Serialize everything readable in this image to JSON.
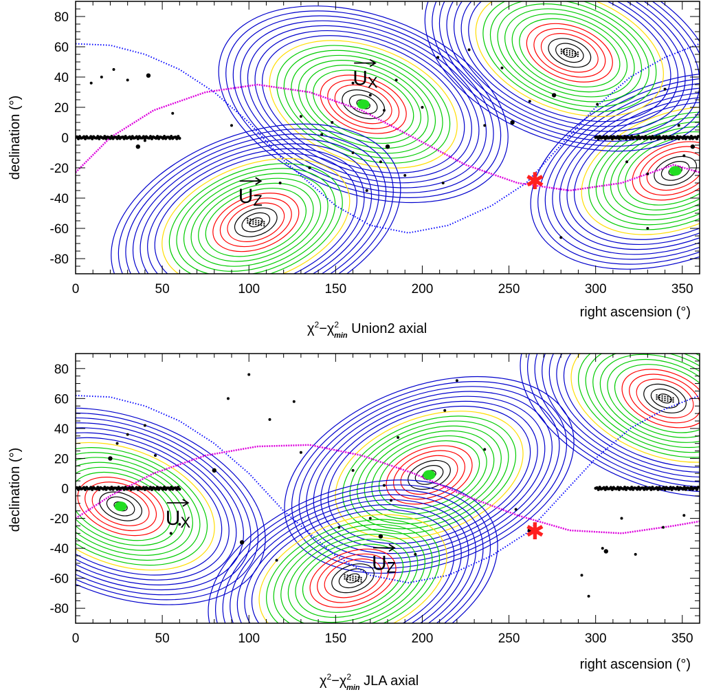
{
  "chart_data": [
    {
      "type": "contour",
      "title": "χ²−χ²min Union2 axial",
      "title_parts": {
        "chi": "χ",
        "sq": "2",
        "minus": "−",
        "chi2": "χ",
        "sq2": "2",
        "sub": "min",
        "rest": " Union2 axial"
      },
      "xlabel": "right ascension (°)",
      "ylabel": "declination (°)",
      "xlim": [
        0,
        360
      ],
      "ylim": [
        -90,
        90
      ],
      "xticks": [
        "0",
        "50",
        "100",
        "150",
        "200",
        "250",
        "300",
        "350"
      ],
      "xtick_values": [
        0,
        50,
        100,
        150,
        200,
        250,
        300,
        350
      ],
      "yticks": [
        "80",
        "60",
        "40",
        "20",
        "0",
        "-20",
        "-40",
        "-60",
        "-80"
      ],
      "ytick_values": [
        80,
        60,
        40,
        20,
        0,
        -20,
        -40,
        -60,
        -80
      ],
      "contour_colors": [
        "#0000cc",
        "#ffdd00",
        "#00cc00",
        "#ff0000",
        "#000000"
      ],
      "minima": [
        {
          "ra": 166,
          "dec": 22,
          "label": "green patch"
        },
        {
          "ra": 346,
          "dec": -22,
          "label": "green patch"
        },
        {
          "ra": 285,
          "dec": 56,
          "label": "black dotted patch"
        },
        {
          "ra": 104,
          "dec": -56,
          "label": "black dotted patch"
        }
      ],
      "vectors": [
        {
          "label": "U",
          "sub": "X",
          "ra": 167,
          "dec": 42
        },
        {
          "label": "U",
          "sub": "Z",
          "ra": 101,
          "dec": -36
        }
      ],
      "marker": {
        "ra": 265,
        "dec": -29,
        "symbol": "✱",
        "color": "#ff2020"
      },
      "galactic_plane": {
        "color": "#0000ff",
        "points": [
          [
            0,
            62
          ],
          [
            20,
            61
          ],
          [
            40,
            55
          ],
          [
            60,
            45
          ],
          [
            80,
            30
          ],
          [
            100,
            10
          ],
          [
            120,
            -15
          ],
          [
            150,
            -45
          ],
          [
            170,
            -58
          ],
          [
            192,
            -63
          ],
          [
            215,
            -58
          ],
          [
            240,
            -45
          ],
          [
            260,
            -30
          ],
          [
            280,
            -5
          ],
          [
            300,
            20
          ],
          [
            320,
            40
          ],
          [
            340,
            53
          ],
          [
            360,
            62
          ]
        ]
      },
      "ecliptic": {
        "color": "#dd00dd",
        "points": [
          [
            0,
            -23
          ],
          [
            20,
            0
          ],
          [
            45,
            18
          ],
          [
            75,
            30
          ],
          [
            105,
            35
          ],
          [
            135,
            30
          ],
          [
            165,
            18
          ],
          [
            195,
            0
          ],
          [
            225,
            -18
          ],
          [
            255,
            -30
          ],
          [
            285,
            -35
          ],
          [
            315,
            -30
          ],
          [
            345,
            -18
          ],
          [
            360,
            -23
          ]
        ]
      },
      "sn_ridge": {
        "dec": 0,
        "ra_ranges": [
          [
            0,
            60
          ],
          [
            300,
            360
          ]
        ]
      },
      "scatter": [
        [
          36,
          -6
        ],
        [
          40,
          -2
        ],
        [
          56,
          16
        ],
        [
          9,
          36
        ],
        [
          15,
          40
        ],
        [
          22,
          45
        ],
        [
          30,
          38
        ],
        [
          42,
          41
        ],
        [
          90,
          8
        ],
        [
          130,
          14
        ],
        [
          148,
          10
        ],
        [
          176,
          -16
        ],
        [
          190,
          -25
        ],
        [
          168,
          -35
        ],
        [
          180,
          -6
        ],
        [
          185,
          38
        ],
        [
          200,
          20
        ],
        [
          209,
          53
        ],
        [
          212,
          -30
        ],
        [
          246,
          46
        ],
        [
          262,
          24
        ],
        [
          276,
          28
        ],
        [
          301,
          22
        ],
        [
          318,
          -16
        ],
        [
          330,
          -24
        ],
        [
          340,
          32
        ],
        [
          348,
          8
        ],
        [
          351,
          -12
        ],
        [
          356,
          -6
        ],
        [
          142,
          2
        ],
        [
          160,
          -10
        ],
        [
          118,
          -30
        ],
        [
          135,
          -20
        ],
        [
          227,
          58
        ],
        [
          236,
          8
        ],
        [
          252,
          10
        ],
        [
          280,
          -66
        ],
        [
          330,
          -60
        ],
        [
          160,
          36
        ],
        [
          170,
          28
        ],
        [
          178,
          18
        ]
      ]
    },
    {
      "type": "contour",
      "title": "χ²−χ²min JLA axial",
      "title_parts": {
        "chi": "χ",
        "sq": "2",
        "minus": "−",
        "chi2": "χ",
        "sq2": "2",
        "sub": "min",
        "rest": " JLA axial"
      },
      "xlabel": "right ascension (°)",
      "ylabel": "declination (°)",
      "xlim": [
        0,
        360
      ],
      "ylim": [
        -90,
        90
      ],
      "xticks": [
        "0",
        "50",
        "100",
        "150",
        "200",
        "250",
        "300",
        "350"
      ],
      "xtick_values": [
        0,
        50,
        100,
        150,
        200,
        250,
        300,
        350
      ],
      "yticks": [
        "80",
        "60",
        "40",
        "20",
        "0",
        "-20",
        "-40",
        "-60",
        "-80"
      ],
      "ytick_values": [
        80,
        60,
        40,
        20,
        0,
        -20,
        -40,
        -60,
        -80
      ],
      "contour_colors": [
        "#0000cc",
        "#ffdd00",
        "#00cc00",
        "#ff0000",
        "#000000"
      ],
      "minima": [
        {
          "ra": 26,
          "dec": -12,
          "label": "green patch"
        },
        {
          "ra": 204,
          "dec": 9,
          "label": "green patch"
        },
        {
          "ra": 340,
          "dec": 60,
          "label": "black dotted patch"
        },
        {
          "ra": 160,
          "dec": -60,
          "label": "black dotted patch"
        }
      ],
      "vectors": [
        {
          "label": "U",
          "sub": "X",
          "ra": 59,
          "dec": -17
        },
        {
          "label": "U",
          "sub": "Z",
          "ra": 178,
          "dec": -47
        }
      ],
      "marker": {
        "ra": 265,
        "dec": -29,
        "symbol": "✱",
        "color": "#ff2020"
      },
      "galactic_plane": {
        "color": "#0000ff",
        "points": [
          [
            0,
            62
          ],
          [
            20,
            61
          ],
          [
            40,
            55
          ],
          [
            60,
            45
          ],
          [
            80,
            30
          ],
          [
            100,
            10
          ],
          [
            120,
            -15
          ],
          [
            150,
            -45
          ],
          [
            170,
            -58
          ],
          [
            192,
            -63
          ],
          [
            215,
            -58
          ],
          [
            240,
            -45
          ],
          [
            260,
            -30
          ],
          [
            280,
            -5
          ],
          [
            300,
            20
          ],
          [
            320,
            40
          ],
          [
            340,
            53
          ],
          [
            360,
            62
          ]
        ]
      },
      "ecliptic": {
        "color": "#dd00dd",
        "points": [
          [
            0,
            -20
          ],
          [
            20,
            -5
          ],
          [
            45,
            10
          ],
          [
            75,
            22
          ],
          [
            105,
            28
          ],
          [
            135,
            29
          ],
          [
            165,
            22
          ],
          [
            195,
            10
          ],
          [
            225,
            -5
          ],
          [
            255,
            -18
          ],
          [
            285,
            -28
          ],
          [
            315,
            -30
          ],
          [
            345,
            -25
          ],
          [
            360,
            -22
          ]
        ]
      },
      "sn_ridge": {
        "dec": 0,
        "ra_ranges": [
          [
            0,
            60
          ],
          [
            300,
            360
          ]
        ]
      },
      "scatter": [
        [
          20,
          20
        ],
        [
          24,
          30
        ],
        [
          30,
          36
        ],
        [
          40,
          42
        ],
        [
          46,
          22
        ],
        [
          55,
          -30
        ],
        [
          60,
          -24
        ],
        [
          96,
          -36
        ],
        [
          100,
          76
        ],
        [
          126,
          58
        ],
        [
          130,
          24
        ],
        [
          152,
          -26
        ],
        [
          160,
          12
        ],
        [
          170,
          -20
        ],
        [
          176,
          -32
        ],
        [
          186,
          34
        ],
        [
          196,
          -44
        ],
        [
          213,
          52
        ],
        [
          220,
          72
        ],
        [
          236,
          26
        ],
        [
          254,
          -14
        ],
        [
          262,
          -28
        ],
        [
          292,
          -58
        ],
        [
          304,
          -40
        ],
        [
          315,
          -20
        ],
        [
          323,
          -44
        ],
        [
          339,
          -26
        ],
        [
          351,
          -18
        ],
        [
          80,
          12
        ],
        [
          88,
          60
        ],
        [
          112,
          46
        ],
        [
          116,
          -48
        ],
        [
          178,
          2
        ],
        [
          182,
          -8
        ],
        [
          296,
          -72
        ],
        [
          306,
          -42
        ]
      ]
    }
  ]
}
